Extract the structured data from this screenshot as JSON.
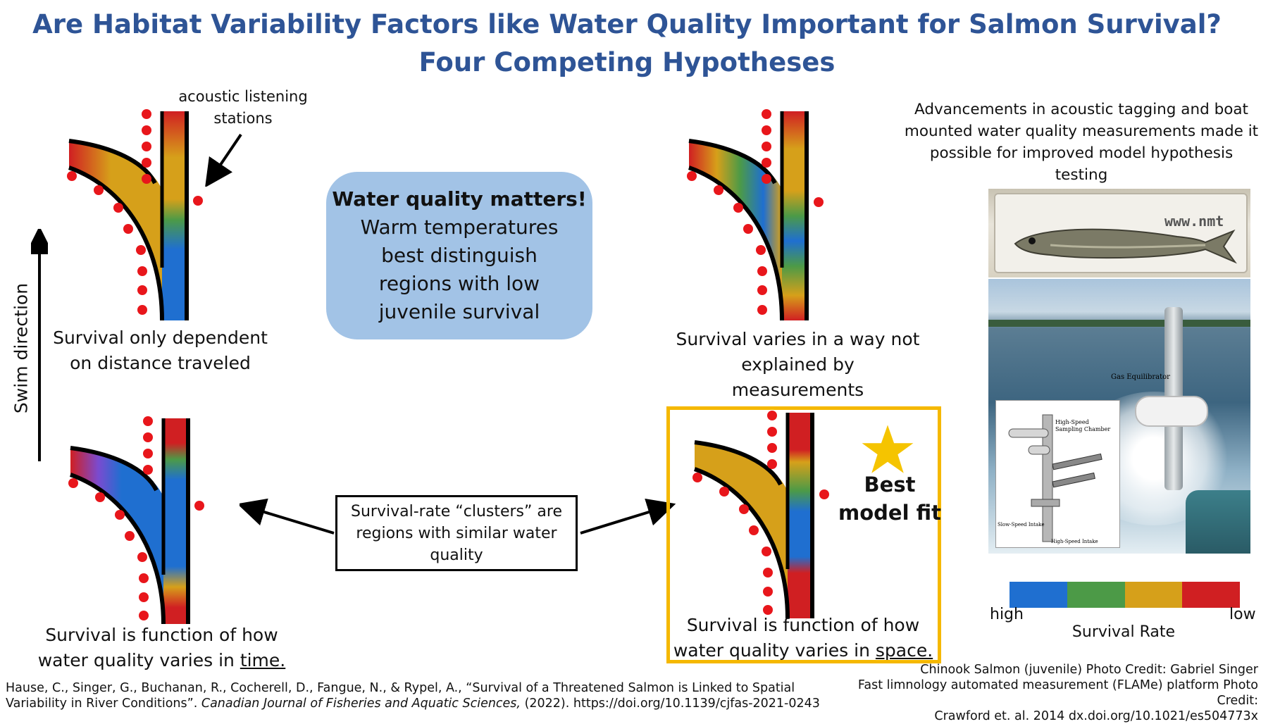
{
  "title": "Are Habitat Variability Factors like Water Quality Important for Salmon Survival? Four Competing Hypotheses",
  "annotations": {
    "stations_label": "acoustic listening stations",
    "swim_direction": "Swim direction",
    "advancements": "Advancements in acoustic tagging and boat mounted water quality measurements made it possible for improved model hypothesis testing"
  },
  "hypotheses": {
    "distance": "Survival only dependent on distance traveled",
    "unexplained": "Survival varies in a way not explained by measurements",
    "time_prefix": "Survival is function of how water quality varies in ",
    "time_keyword": "time.",
    "space_prefix": "Survival is function of how water quality varies in ",
    "space_keyword": "space."
  },
  "callout": {
    "heading": "Water quality matters!",
    "body": "Warm temperatures best distinguish regions with low juvenile survival"
  },
  "clusters_box": "Survival-rate “clusters” are regions with similar water quality",
  "best_fit": "Best model fit",
  "legend": {
    "title": "Survival Rate",
    "high": "high",
    "low": "low",
    "colors": [
      "#1f6fd0",
      "#4c9a47",
      "#d6a01a",
      "#d01f22"
    ]
  },
  "photos": {
    "fish_sign": "www.nmt",
    "gas_equilibrator": "Gas Equilibrator",
    "high_speed_chamber": "High-Speed Sampling Chamber",
    "slow_speed_intake": "Slow-Speed Intake",
    "high_speed_intake": "High-Speed Intake"
  },
  "citation": {
    "authors": "Hause, C., Singer, G., Buchanan, R., Cocherell, D., Fangue, N., & Rypel, A., “Survival of a Threatened Salmon is Linked to Spatial Variability in River Conditions”. ",
    "journal": "Canadian Journal of Fisheries and Aquatic Sciences,",
    "rest": " (2022). https://doi.org/10.1139/cjfas-2021-0243"
  },
  "credits": {
    "line1": "Chinook Salmon (juvenile) Photo Credit: Gabriel Singer",
    "line2": "Fast limnology automated measurement (FLAMe) platform Photo Credit:",
    "line3": "Crawford et. al. 2014 dx.doi.org/10.1021/es504773x"
  }
}
